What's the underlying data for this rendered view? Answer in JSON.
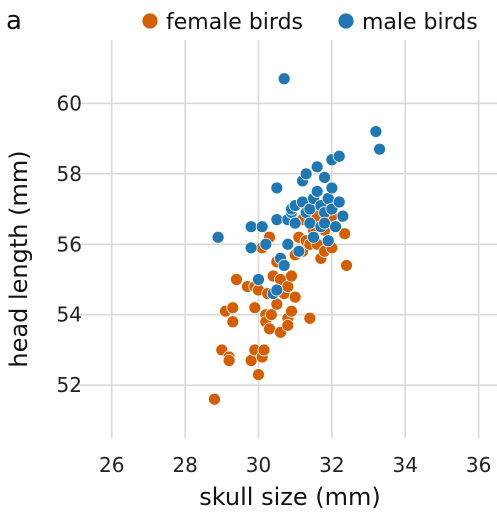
{
  "chart_data": {
    "type": "scatter",
    "panel_label": "a",
    "xlabel": "skull size (mm)",
    "ylabel": "head length (mm)",
    "xlim": [
      25,
      36.5
    ],
    "ylim": [
      50.5,
      61.8
    ],
    "xticks": [
      26,
      28,
      30,
      32,
      34,
      36
    ],
    "yticks": [
      52,
      54,
      56,
      58,
      60
    ],
    "grid": true,
    "legend_position": "top",
    "series": [
      {
        "name": "female birds",
        "color": "#D55E00",
        "points": [
          [
            28.8,
            51.6
          ],
          [
            29.0,
            53.0
          ],
          [
            29.2,
            52.8
          ],
          [
            29.2,
            52.7
          ],
          [
            29.1,
            54.1
          ],
          [
            29.3,
            54.2
          ],
          [
            29.3,
            53.8
          ],
          [
            29.4,
            55.0
          ],
          [
            29.7,
            54.8
          ],
          [
            29.8,
            52.7
          ],
          [
            29.9,
            54.8
          ],
          [
            29.9,
            54.2
          ],
          [
            29.9,
            53.0
          ],
          [
            30.0,
            52.3
          ],
          [
            30.0,
            54.7
          ],
          [
            30.1,
            52.8
          ],
          [
            30.1,
            55.9
          ],
          [
            30.1,
            56.5
          ],
          [
            30.15,
            53.0
          ],
          [
            30.2,
            54.0
          ],
          [
            30.2,
            53.8
          ],
          [
            30.25,
            54.6
          ],
          [
            30.3,
            56.2
          ],
          [
            30.3,
            53.6
          ],
          [
            30.35,
            54.0
          ],
          [
            30.4,
            55.1
          ],
          [
            30.5,
            54.3
          ],
          [
            30.5,
            55.5
          ],
          [
            30.6,
            53.5
          ],
          [
            30.6,
            55.0
          ],
          [
            30.7,
            54.6
          ],
          [
            30.8,
            53.9
          ],
          [
            30.8,
            53.7
          ],
          [
            30.8,
            54.8
          ],
          [
            30.9,
            55.1
          ],
          [
            30.9,
            54.1
          ],
          [
            31.0,
            55.7
          ],
          [
            31.0,
            54.5
          ],
          [
            31.1,
            56.2
          ],
          [
            31.2,
            56.7
          ],
          [
            31.2,
            55.8
          ],
          [
            31.3,
            56.1
          ],
          [
            31.4,
            56.0
          ],
          [
            31.4,
            53.9
          ],
          [
            31.5,
            56.4
          ],
          [
            31.6,
            56.0
          ],
          [
            31.6,
            56.8
          ],
          [
            31.7,
            55.6
          ],
          [
            31.8,
            56.4
          ],
          [
            31.8,
            55.8
          ],
          [
            32.0,
            56.8
          ],
          [
            32.0,
            55.9
          ],
          [
            32.1,
            56.5
          ],
          [
            32.35,
            56.3
          ],
          [
            32.4,
            55.4
          ]
        ]
      },
      {
        "name": "male birds",
        "color": "#1F77B4",
        "points": [
          [
            28.9,
            56.2
          ],
          [
            29.8,
            56.5
          ],
          [
            29.8,
            55.9
          ],
          [
            30.0,
            55.0
          ],
          [
            30.1,
            56.5
          ],
          [
            30.2,
            56.0
          ],
          [
            30.4,
            54.6
          ],
          [
            30.5,
            54.7
          ],
          [
            30.5,
            56.7
          ],
          [
            30.5,
            57.6
          ],
          [
            30.6,
            55.6
          ],
          [
            30.7,
            60.7
          ],
          [
            30.7,
            55.4
          ],
          [
            30.8,
            56.0
          ],
          [
            30.8,
            56.7
          ],
          [
            30.9,
            56.9
          ],
          [
            30.9,
            57.0
          ],
          [
            31.0,
            56.6
          ],
          [
            31.0,
            57.1
          ],
          [
            31.1,
            55.8
          ],
          [
            31.2,
            57.8
          ],
          [
            31.2,
            57.2
          ],
          [
            31.3,
            56.9
          ],
          [
            31.3,
            58.0
          ],
          [
            31.4,
            56.6
          ],
          [
            31.4,
            57.0
          ],
          [
            31.5,
            56.2
          ],
          [
            31.5,
            57.3
          ],
          [
            31.6,
            58.2
          ],
          [
            31.6,
            57.5
          ],
          [
            31.7,
            56.5
          ],
          [
            31.7,
            57.1
          ],
          [
            31.8,
            57.9
          ],
          [
            31.8,
            56.9
          ],
          [
            31.8,
            56.6
          ],
          [
            31.9,
            57.3
          ],
          [
            31.9,
            56.1
          ],
          [
            32.0,
            58.4
          ],
          [
            32.0,
            57.6
          ],
          [
            32.0,
            57.0
          ],
          [
            32.1,
            56.5
          ],
          [
            32.2,
            57.2
          ],
          [
            32.2,
            58.5
          ],
          [
            32.3,
            56.8
          ],
          [
            33.2,
            59.2
          ],
          [
            33.3,
            58.7
          ]
        ]
      }
    ]
  }
}
